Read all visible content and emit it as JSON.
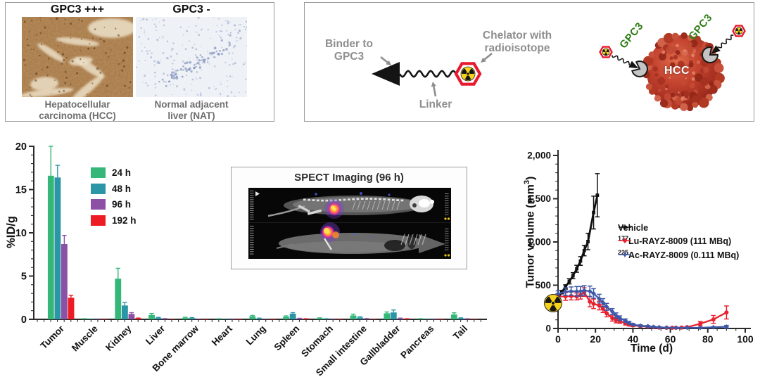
{
  "histology": {
    "left": {
      "title": "GPC3 +++",
      "caption_line1": "Hepatocellular",
      "caption_line2": "carcinoma (HCC)"
    },
    "right": {
      "title": "GPC3 -",
      "caption_line1": "Normal adjacent",
      "caption_line2": "liver (NAT)"
    }
  },
  "diagram": {
    "binder_line1": "Binder to",
    "binder_line2": "GPC3",
    "linker_label": "Linker",
    "chelator_line1": "Chelator with",
    "chelator_line2": "radioisotope",
    "cell_label": "HCC",
    "gpc3_label": "GPC3",
    "colors": {
      "gpc3_green": "#2f7d14",
      "hexagon_red": "#e8192c",
      "radiation_yellow": "#f5d21c",
      "binder_black": "#141414",
      "label_gray": "#8e8e8e"
    }
  },
  "spect": {
    "title": "SPECT Imaging (96 h)"
  },
  "chart_data": [
    {
      "type": "bar",
      "title": "",
      "ylabel": "%ID/g",
      "ylim": [
        0,
        20
      ],
      "yticks": [
        0,
        5,
        10,
        15,
        20
      ],
      "grid": false,
      "legend_position": "upper-left-inside",
      "categories": [
        "Tumor",
        "Muscle",
        "Kidney",
        "Liver",
        "Bone marrow",
        "Heart",
        "Lung",
        "Spleen",
        "Stomach",
        "Small intestine",
        "Gallbladder",
        "Pancreas",
        "Tail"
      ],
      "series": [
        {
          "name": "24 h",
          "color": "#34b778",
          "values": [
            16.6,
            0.06,
            4.7,
            0.5,
            0.18,
            0.05,
            0.35,
            0.3,
            0.12,
            0.45,
            0.7,
            0.06,
            0.55
          ],
          "errors": [
            3.4,
            0.02,
            1.2,
            0.18,
            0.06,
            0.02,
            0.1,
            0.1,
            0.05,
            0.15,
            0.15,
            0.02,
            0.2
          ]
        },
        {
          "name": "48 h",
          "color": "#2a96a6",
          "values": [
            16.4,
            0.04,
            1.6,
            0.17,
            0.15,
            0.04,
            0.1,
            0.65,
            0.05,
            0.22,
            0.8,
            0.04,
            0.12
          ],
          "errors": [
            1.4,
            0.01,
            0.35,
            0.05,
            0.05,
            0.01,
            0.04,
            0.12,
            0.02,
            0.07,
            0.28,
            0.01,
            0.05
          ]
        },
        {
          "name": "96 h",
          "color": "#8c51a5",
          "values": [
            8.7,
            0.03,
            0.62,
            0.07,
            0.04,
            0.02,
            0.04,
            0.09,
            0.03,
            0.07,
            0.1,
            0.02,
            0.05
          ],
          "errors": [
            1.0,
            0.01,
            0.15,
            0.02,
            0.01,
            0.01,
            0.01,
            0.03,
            0.01,
            0.02,
            0.04,
            0.01,
            0.02
          ]
        },
        {
          "name": "192 h",
          "color": "#ed1c24",
          "values": [
            2.5,
            0.02,
            0.12,
            0.05,
            0.02,
            0.01,
            0.02,
            0.05,
            0.02,
            0.04,
            0.05,
            0.01,
            0.03
          ],
          "errors": [
            0.28,
            0.01,
            0.03,
            0.01,
            0.01,
            0.0,
            0.01,
            0.02,
            0.01,
            0.01,
            0.02,
            0.0,
            0.01
          ]
        }
      ]
    },
    {
      "type": "line",
      "title": "",
      "xlabel": "Time (d)",
      "ylabel_pre": "Tumor volume (mm",
      "ylabel_sup": "3",
      "ylabel_post": ")",
      "xlim": [
        0,
        100
      ],
      "ylim": [
        0,
        2000
      ],
      "xticks": [
        0,
        20,
        40,
        60,
        80,
        100
      ],
      "ytick_values": [
        0,
        500,
        1000,
        1500,
        2000
      ],
      "ytick_labels": [
        "0",
        "500",
        "1,000",
        "1,500",
        "2,000"
      ],
      "grid": false,
      "legend_position": "middle-right-inside",
      "series": [
        {
          "name": "Vehicle",
          "name_sup": "",
          "color": "#111111",
          "marker": "square",
          "x": [
            0,
            2,
            4,
            6,
            8,
            10,
            12,
            14,
            16,
            19,
            21
          ],
          "y": [
            350,
            420,
            480,
            545,
            610,
            690,
            780,
            900,
            1005,
            1340,
            1540
          ],
          "err": [
            0,
            20,
            25,
            30,
            35,
            40,
            50,
            60,
            95,
            190,
            250
          ]
        },
        {
          "name": "Lu-RAYZ-8009 (111 MBq)",
          "name_sup": "177",
          "color": "#e8212e",
          "marker": "circle",
          "x": [
            0,
            4,
            7,
            10,
            12,
            14,
            17,
            19,
            22,
            24,
            26,
            29,
            31,
            33,
            36,
            38,
            40,
            44,
            48,
            51,
            54,
            58,
            61,
            63,
            66,
            69,
            76,
            83,
            90
          ],
          "y": [
            370,
            370,
            375,
            370,
            385,
            420,
            310,
            285,
            265,
            230,
            175,
            120,
            95,
            85,
            60,
            45,
            35,
            28,
            22,
            15,
            10,
            8,
            8,
            8,
            10,
            15,
            55,
            105,
            185
          ],
          "err": [
            30,
            45,
            45,
            40,
            45,
            50,
            60,
            55,
            50,
            45,
            40,
            35,
            30,
            25,
            20,
            15,
            12,
            10,
            8,
            6,
            5,
            4,
            4,
            4,
            5,
            6,
            25,
            45,
            75
          ]
        },
        {
          "name": "Ac-RAYZ-8009 (0.111 MBq)",
          "name_sup": "225",
          "color": "#3d58a8",
          "marker": "diamond",
          "x": [
            0,
            4,
            7,
            10,
            12,
            14,
            17,
            19,
            22,
            24,
            26,
            29,
            31,
            33,
            36,
            38,
            40,
            44,
            48,
            51,
            54,
            58,
            63,
            69,
            76,
            83,
            90
          ],
          "y": [
            400,
            425,
            430,
            430,
            430,
            440,
            430,
            405,
            345,
            300,
            250,
            195,
            150,
            120,
            90,
            65,
            45,
            32,
            26,
            18,
            14,
            10,
            8,
            8,
            8,
            14,
            20
          ],
          "err": [
            35,
            45,
            50,
            55,
            55,
            55,
            60,
            55,
            50,
            45,
            40,
            35,
            30,
            25,
            20,
            15,
            12,
            10,
            8,
            6,
            5,
            4,
            4,
            4,
            4,
            6,
            15
          ]
        }
      ]
    }
  ]
}
